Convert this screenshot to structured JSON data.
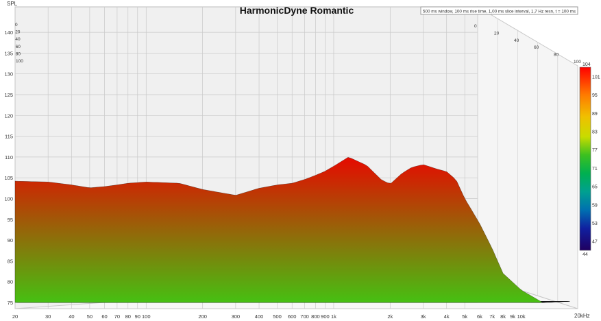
{
  "chart_data": {
    "type": "area",
    "title": "HarmonicDyne Romantic",
    "info": "500 ms window, 100 ms rise time, 1,00 ms slice interval, 1,7 Hz resn, t = 100 ms",
    "ylabel": "SPL",
    "xlabel": "",
    "x_unit_label": "20kHz",
    "x_scale": "log",
    "xlim": [
      20,
      20000
    ],
    "ylim": [
      73,
      143
    ],
    "y_ticks": [
      "75",
      "80",
      "85",
      "90",
      "95",
      "100",
      "105",
      "110",
      "115",
      "120",
      "125",
      "130",
      "135",
      "140"
    ],
    "y_tick_values": [
      75,
      80,
      85,
      90,
      95,
      100,
      105,
      110,
      115,
      120,
      125,
      130,
      135,
      140
    ],
    "x_ticks": [
      "20",
      "30",
      "40",
      "50",
      "60",
      "70",
      "80",
      "90",
      "100",
      "200",
      "300",
      "400",
      "500",
      "600",
      "700",
      "800",
      "900",
      "1k",
      "2k",
      "3k",
      "4k",
      "5k",
      "6k",
      "7k",
      "8k",
      "9k",
      "10k"
    ],
    "x_tick_values": [
      20,
      30,
      40,
      50,
      60,
      70,
      80,
      90,
      100,
      200,
      300,
      400,
      500,
      600,
      700,
      800,
      900,
      1000,
      2000,
      3000,
      4000,
      5000,
      6000,
      7000,
      8000,
      9000,
      10000
    ],
    "time_ticks_left": [
      "0",
      "20",
      "40",
      "60",
      "80",
      "100"
    ],
    "time_ticks_right": [
      "0",
      "20",
      "40",
      "60",
      "80",
      "100"
    ],
    "time_tick_values_ms": [
      0,
      20,
      40,
      60,
      80,
      100
    ],
    "colorbar_ticks": [
      "104",
      "101",
      "95",
      "89",
      "83",
      "77",
      "71",
      "65",
      "59",
      "53",
      "47",
      "44"
    ],
    "colorbar_tick_values": [
      104,
      101,
      95,
      89,
      83,
      77,
      71,
      65,
      59,
      53,
      47,
      44
    ],
    "colorbar_range": [
      44,
      104
    ],
    "front_slice": {
      "name": "",
      "x": [
        20,
        30,
        40,
        50,
        60,
        70,
        80,
        100,
        150,
        200,
        300,
        400,
        500,
        600,
        700,
        800,
        900,
        1000,
        1200,
        1500,
        1800,
        2000,
        2300,
        2600,
        3000,
        3500,
        4000,
        4500,
        5000,
        6000,
        7000,
        8000,
        10000,
        13000
      ],
      "y": [
        104.2,
        104.0,
        103.3,
        102.6,
        102.9,
        103.3,
        103.7,
        104.0,
        103.7,
        102.2,
        100.8,
        102.5,
        103.3,
        103.7,
        104.6,
        105.6,
        106.6,
        107.8,
        110.0,
        108.0,
        104.5,
        103.5,
        106.0,
        107.5,
        108.2,
        107.2,
        106.5,
        104.5,
        100.0,
        94.0,
        88.0,
        82.0,
        78.0,
        75.0
      ]
    }
  }
}
